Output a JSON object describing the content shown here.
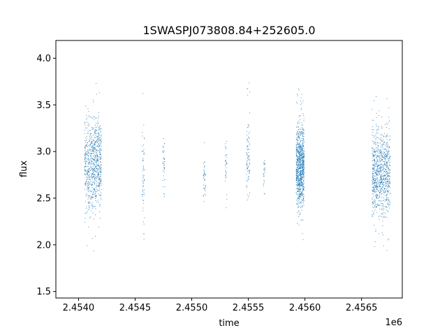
{
  "chart_data": {
    "type": "scatter",
    "title": "1SWASPJ073808.84+252605.0",
    "xlabel": "time",
    "ylabel": "flux",
    "x_offset_label": "1e6",
    "xlim": [
      2.4538,
      2.45686
    ],
    "ylim": [
      1.43,
      4.19
    ],
    "xticks": [
      2.454,
      2.4545,
      2.455,
      2.4555,
      2.456,
      2.4565
    ],
    "xtick_labels": [
      "2.4540",
      "2.4545",
      "2.4550",
      "2.4555",
      "2.4560",
      "2.4565"
    ],
    "yticks": [
      1.5,
      2.0,
      2.5,
      3.0,
      3.5,
      4.0
    ],
    "ytick_labels": [
      "1.5",
      "2.0",
      "2.5",
      "3.0",
      "3.5",
      "4.0"
    ],
    "grid": false,
    "marker_color": "#1f77b4",
    "clusters": [
      {
        "x_range": [
          2.45405,
          2.45414
        ],
        "y_center": 2.85,
        "y_spread": 0.45,
        "n": 450
      },
      {
        "x_range": [
          2.45414,
          2.4542
        ],
        "y_center": 2.9,
        "y_spread": 0.42,
        "n": 350
      },
      {
        "x_range": [
          2.45456,
          2.45458
        ],
        "y_center": 2.7,
        "y_spread": 0.55,
        "n": 60
      },
      {
        "x_range": [
          2.45474,
          2.45476
        ],
        "y_center": 2.9,
        "y_spread": 0.25,
        "n": 40
      },
      {
        "x_range": [
          2.4551,
          2.45512
        ],
        "y_center": 2.75,
        "y_spread": 0.25,
        "n": 40
      },
      {
        "x_range": [
          2.45529,
          2.45531
        ],
        "y_center": 2.8,
        "y_spread": 0.3,
        "n": 35
      },
      {
        "x_range": [
          2.45548,
          2.45551
        ],
        "y_center": 2.95,
        "y_spread": 0.4,
        "n": 90
      },
      {
        "x_range": [
          2.45563,
          2.45565
        ],
        "y_center": 2.8,
        "y_spread": 0.15,
        "n": 25
      },
      {
        "x_range": [
          2.45592,
          2.45599
        ],
        "y_center": 2.85,
        "y_spread": 0.4,
        "n": 900
      },
      {
        "x_range": [
          2.45659,
          2.45675
        ],
        "y_center": 2.78,
        "y_spread": 0.4,
        "n": 900
      }
    ]
  }
}
